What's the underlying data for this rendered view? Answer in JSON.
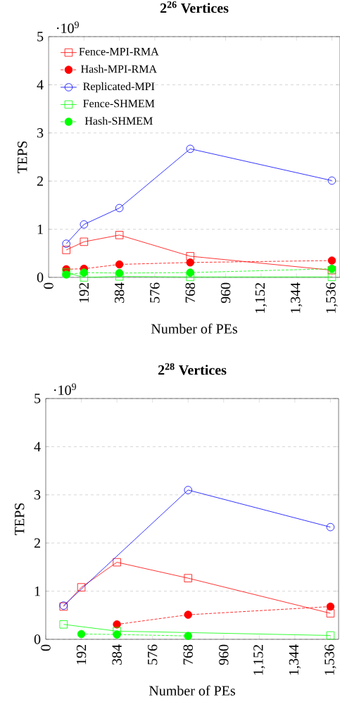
{
  "chart_data": [
    {
      "type": "line",
      "title": "2$^{26}$ Vertices",
      "xlabel": "Number of PEs",
      "ylabel": "TEPS",
      "annotations": [
        "·10$^{9}$"
      ],
      "xlim": [
        0,
        1580
      ],
      "ylim": [
        0,
        5
      ],
      "xticks": [
        0,
        192,
        384,
        576,
        768,
        960,
        {
          "value": 1152,
          "label": "1,152"
        },
        {
          "value": 1344,
          "label": "1,344"
        },
        {
          "value": 1536,
          "label": "1,536"
        }
      ],
      "yticks": [
        0,
        1,
        2,
        3,
        4,
        5
      ],
      "grid": "y",
      "legend": "top left",
      "series": [
        {
          "name": "Fence-MPI-RMA",
          "color": "#ff0000",
          "marker": "square",
          "line_style": "solid",
          "x": [
            96,
            192,
            384,
            768,
            1536
          ],
          "values": [
            0.57,
            0.74,
            0.88,
            0.44,
            0.15
          ]
        },
        {
          "name": "Hash-MPI-RMA",
          "color": "#ff0000",
          "marker": "circle",
          "line_style": "dashed",
          "x": [
            96,
            192,
            384,
            768,
            1536
          ],
          "values": [
            0.17,
            0.18,
            0.27,
            0.31,
            0.35
          ]
        },
        {
          "name": "Replicated-MPI",
          "color": "#0000ff",
          "marker": "circle",
          "line_style": "solid",
          "x": [
            96,
            192,
            384,
            768,
            1536
          ],
          "values": [
            0.7,
            1.1,
            1.44,
            2.67,
            2.01
          ]
        },
        {
          "name": "Fence-SHMEM",
          "color": "#00ff00",
          "marker": "square",
          "line_style": "solid",
          "x": [
            96,
            192,
            384,
            768,
            1536
          ],
          "values": [
            0.1,
            0.0,
            0.02,
            0.01,
            0.01
          ]
        },
        {
          "name": "Hash-SHMEM",
          "color": "#00ff00",
          "marker": "circle",
          "line_style": "dashed",
          "x": [
            96,
            192,
            384,
            768,
            1536
          ],
          "values": [
            0.06,
            0.1,
            0.09,
            0.1,
            0.18
          ]
        }
      ]
    },
    {
      "type": "line",
      "title": "2$^{28}$ Vertices",
      "xlabel": "Number of PEs",
      "ylabel": "TEPS",
      "annotations": [
        "·10$^{9}$"
      ],
      "xlim": [
        0,
        1580
      ],
      "ylim": [
        0,
        5
      ],
      "xticks": [
        0,
        192,
        384,
        576,
        768,
        960,
        {
          "value": 1152,
          "label": "1,152"
        },
        {
          "value": 1344,
          "label": "1,344"
        },
        {
          "value": 1536,
          "label": "1,536"
        }
      ],
      "yticks": [
        0,
        1,
        2,
        3,
        4,
        5
      ],
      "grid": "y",
      "series": [
        {
          "color": "#ff0000",
          "marker": "square",
          "line_style": "solid",
          "x": [
            96,
            192,
            384,
            768,
            1536
          ],
          "values": [
            0.68,
            1.08,
            1.6,
            1.27,
            0.54
          ]
        },
        {
          "color": "#ff0000",
          "marker": "circle",
          "line_style": "dashed",
          "x": [
            384,
            768,
            1536
          ],
          "values": [
            0.31,
            0.51,
            0.68
          ]
        },
        {
          "color": "#0000ff",
          "marker": "circle",
          "line_style": "solid",
          "x": [
            96,
            768,
            1536
          ],
          "values": [
            0.7,
            3.1,
            2.33
          ]
        },
        {
          "color": "#00ff00",
          "marker": "square",
          "line_style": "solid",
          "x": [
            96,
            384,
            1536
          ],
          "values": [
            0.31,
            0.17,
            0.08
          ]
        },
        {
          "color": "#00ff00",
          "marker": "circle",
          "line_style": "dashed",
          "x": [
            192,
            384,
            768
          ],
          "values": [
            0.11,
            0.1,
            0.07
          ]
        }
      ]
    }
  ]
}
